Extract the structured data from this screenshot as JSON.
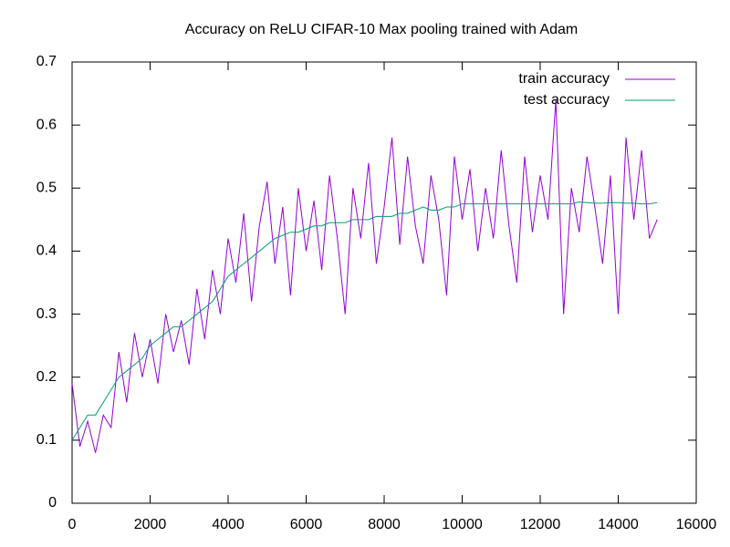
{
  "chart_data": {
    "type": "line",
    "title": "Accuracy on ReLU CIFAR-10 Max pooling trained with Adam",
    "x": [
      0,
      200,
      400,
      600,
      800,
      1000,
      1200,
      1400,
      1600,
      1800,
      2000,
      2200,
      2400,
      2600,
      2800,
      3000,
      3200,
      3400,
      3600,
      3800,
      4000,
      4200,
      4400,
      4600,
      4800,
      5000,
      5200,
      5400,
      5600,
      5800,
      6000,
      6200,
      6400,
      6600,
      6800,
      7000,
      7200,
      7400,
      7600,
      7800,
      8000,
      8200,
      8400,
      8600,
      8800,
      9000,
      9200,
      9400,
      9600,
      9800,
      10000,
      10200,
      10400,
      10600,
      10800,
      11000,
      11200,
      11400,
      11600,
      11800,
      12000,
      12200,
      12400,
      12600,
      12800,
      13000,
      13200,
      13400,
      13600,
      13800,
      14000,
      14200,
      14400,
      14600,
      14800,
      15000
    ],
    "series": [
      {
        "name": "train accuracy",
        "color": "#9400d3",
        "values": [
          0.19,
          0.09,
          0.13,
          0.08,
          0.14,
          0.12,
          0.24,
          0.16,
          0.27,
          0.2,
          0.26,
          0.19,
          0.3,
          0.24,
          0.29,
          0.22,
          0.34,
          0.26,
          0.37,
          0.3,
          0.42,
          0.35,
          0.46,
          0.32,
          0.44,
          0.51,
          0.38,
          0.47,
          0.33,
          0.5,
          0.4,
          0.48,
          0.37,
          0.52,
          0.42,
          0.3,
          0.5,
          0.42,
          0.54,
          0.38,
          0.47,
          0.58,
          0.41,
          0.55,
          0.44,
          0.38,
          0.52,
          0.45,
          0.33,
          0.55,
          0.45,
          0.53,
          0.4,
          0.5,
          0.42,
          0.56,
          0.44,
          0.35,
          0.55,
          0.43,
          0.52,
          0.45,
          0.64,
          0.3,
          0.5,
          0.43,
          0.55,
          0.47,
          0.38,
          0.52,
          0.3,
          0.58,
          0.45,
          0.56,
          0.42,
          0.45
        ]
      },
      {
        "name": "test accuracy",
        "color": "#009e73",
        "values": [
          0.1,
          0.12,
          0.14,
          0.14,
          0.16,
          0.18,
          0.2,
          0.21,
          0.22,
          0.23,
          0.25,
          0.26,
          0.27,
          0.28,
          0.28,
          0.29,
          0.3,
          0.31,
          0.32,
          0.34,
          0.36,
          0.37,
          0.38,
          0.39,
          0.4,
          0.41,
          0.42,
          0.425,
          0.43,
          0.43,
          0.435,
          0.44,
          0.44,
          0.445,
          0.445,
          0.445,
          0.45,
          0.45,
          0.45,
          0.455,
          0.455,
          0.455,
          0.46,
          0.46,
          0.465,
          0.47,
          0.465,
          0.465,
          0.47,
          0.47,
          0.475,
          0.475,
          0.475,
          0.475,
          0.475,
          0.475,
          0.475,
          0.475,
          0.475,
          0.475,
          0.475,
          0.475,
          0.475,
          0.475,
          0.475,
          0.478,
          0.477,
          0.476,
          0.476,
          0.477,
          0.477,
          0.476,
          0.476,
          0.475,
          0.475,
          0.477
        ]
      }
    ],
    "xlim": [
      0,
      16000
    ],
    "xticks": [
      0,
      2000,
      4000,
      6000,
      8000,
      10000,
      12000,
      14000,
      16000
    ],
    "ylim": [
      0,
      0.7
    ],
    "yticks": [
      0,
      0.1,
      0.2,
      0.3,
      0.4,
      0.5,
      0.6,
      0.7
    ],
    "grid": false,
    "legend": "top-right"
  }
}
